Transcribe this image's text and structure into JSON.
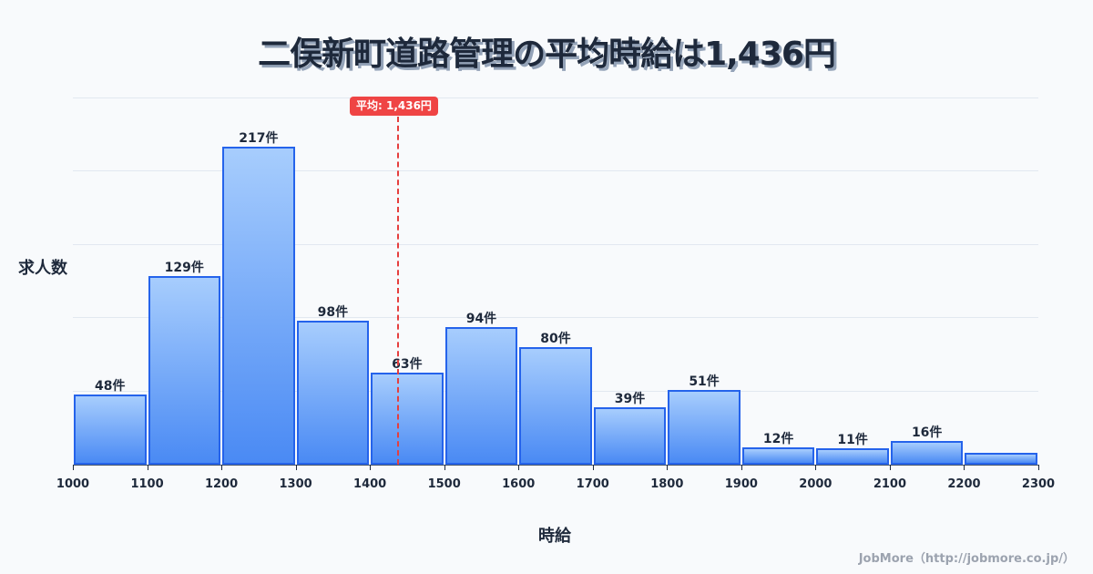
{
  "title": "二俣新町道路管理の平均時給は1,436円",
  "y_axis_label": "求人数",
  "x_axis_label": "時給",
  "footer": "JobMore（http://jobmore.co.jp/）",
  "average_badge": "平均: 1,436円",
  "colors": {
    "bar_top": "#a7cdfd",
    "bar_bottom": "#4a8af4",
    "bar_border": "#2563eb",
    "average_line": "#ef4444",
    "text": "#1e293b"
  },
  "chart_data": {
    "type": "bar",
    "title": "二俣新町道路管理の平均時給は1,436円",
    "xlabel": "時給",
    "ylabel": "求人数",
    "bin_edges": [
      1000,
      1100,
      1200,
      1300,
      1400,
      1500,
      1600,
      1700,
      1800,
      1900,
      2000,
      2100,
      2200,
      2300
    ],
    "categories": [
      "1000-1100",
      "1100-1200",
      "1200-1300",
      "1300-1400",
      "1400-1500",
      "1500-1600",
      "1600-1700",
      "1700-1800",
      "1800-1900",
      "1900-2000",
      "2000-2100",
      "2100-2200",
      "2200-2300"
    ],
    "values": [
      48,
      129,
      217,
      98,
      63,
      94,
      80,
      39,
      51,
      12,
      11,
      16,
      8
    ],
    "labels": [
      "48件",
      "129件",
      "217件",
      "98件",
      "63件",
      "94件",
      "80件",
      "39件",
      "51件",
      "12件",
      "11件",
      "16件",
      ""
    ],
    "x_ticks": [
      "1000",
      "1100",
      "1200",
      "1300",
      "1400",
      "1500",
      "1600",
      "1700",
      "1800",
      "1900",
      "2000",
      "2100",
      "2200",
      "2300"
    ],
    "ylim": [
      0,
      255
    ],
    "grid": true,
    "average": 1436,
    "average_label": "平均: 1,436円"
  }
}
